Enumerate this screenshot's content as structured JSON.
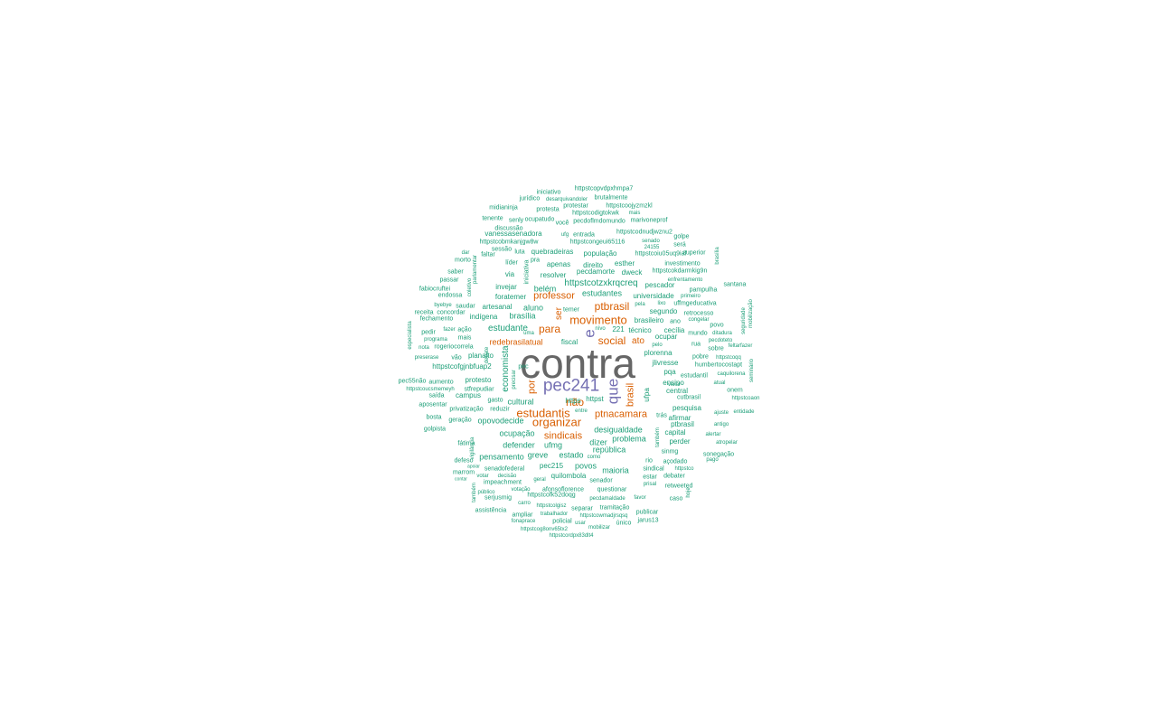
{
  "colors": {
    "gray": "#666666",
    "purple": "#7570b3",
    "orange": "#d95f02",
    "teal": "#1b9e77"
  },
  "words": [
    {
      "text": "contra",
      "color": "gray"
    },
    {
      "text": "pec241",
      "color": "purple"
    },
    {
      "text": "que",
      "color": "purple"
    },
    {
      "text": "e",
      "color": "purple"
    },
    {
      "text": "movimento",
      "color": "orange"
    },
    {
      "text": "estudantis",
      "color": "orange"
    },
    {
      "text": "organizar",
      "color": "orange"
    },
    {
      "text": "ptbrasil",
      "color": "orange"
    },
    {
      "text": "para",
      "color": "orange"
    },
    {
      "text": "social",
      "color": "orange"
    },
    {
      "text": "não",
      "color": "orange"
    },
    {
      "text": "ptnacamara",
      "color": "orange"
    },
    {
      "text": "sindicais",
      "color": "orange"
    },
    {
      "text": "professor",
      "color": "orange"
    },
    {
      "text": "redebrasilatual",
      "color": "orange"
    },
    {
      "text": "brasil",
      "color": "orange"
    },
    {
      "text": "por",
      "color": "orange"
    },
    {
      "text": "ato",
      "color": "orange"
    },
    {
      "text": "ser",
      "color": "orange"
    },
    {
      "text": "economista",
      "color": "teal"
    },
    {
      "text": "httpstcotzxkrqcreq",
      "color": "teal"
    },
    {
      "text": "estudante",
      "color": "teal"
    },
    {
      "text": "brasília",
      "color": "teal"
    },
    {
      "text": "aluno",
      "color": "teal"
    },
    {
      "text": "belém",
      "color": "teal"
    },
    {
      "text": "estudantes",
      "color": "teal"
    },
    {
      "text": "desigualdade",
      "color": "teal"
    },
    {
      "text": "república",
      "color": "teal"
    },
    {
      "text": "ocupação",
      "color": "teal"
    },
    {
      "text": "cultural",
      "color": "teal"
    },
    {
      "text": "defender",
      "color": "teal"
    },
    {
      "text": "ufmg",
      "color": "teal"
    },
    {
      "text": "dizer",
      "color": "teal"
    },
    {
      "text": "problema",
      "color": "teal"
    },
    {
      "text": "pensamento",
      "color": "teal"
    },
    {
      "text": "greve",
      "color": "teal"
    },
    {
      "text": "estado",
      "color": "teal"
    },
    {
      "text": "povos",
      "color": "teal"
    },
    {
      "text": "maioria",
      "color": "teal"
    },
    {
      "text": "pec215",
      "color": "teal"
    },
    {
      "text": "quilombola",
      "color": "teal"
    },
    {
      "text": "opovodecide",
      "color": "teal"
    },
    {
      "text": "campus",
      "color": "teal"
    },
    {
      "text": "protesto",
      "color": "teal"
    },
    {
      "text": "planalto",
      "color": "teal"
    },
    {
      "text": "httpstcofgjnbfuap2",
      "color": "teal"
    },
    {
      "text": "fiscal",
      "color": "teal"
    },
    {
      "text": "técnico",
      "color": "teal"
    },
    {
      "text": "ocupar",
      "color": "teal"
    },
    {
      "text": "segundo",
      "color": "teal"
    },
    {
      "text": "brasileiro",
      "color": "teal"
    },
    {
      "text": "universidade",
      "color": "teal"
    },
    {
      "text": "pescador",
      "color": "teal"
    },
    {
      "text": "plorenna",
      "color": "teal"
    },
    {
      "text": "jlivresse",
      "color": "teal"
    },
    {
      "text": "ensino",
      "color": "teal"
    },
    {
      "text": "central",
      "color": "teal"
    },
    {
      "text": "ufpa",
      "color": "teal"
    },
    {
      "text": "https",
      "color": "teal"
    },
    {
      "text": "httpst",
      "color": "teal"
    },
    {
      "text": "pesquisa",
      "color": "teal"
    },
    {
      "text": "afirmar",
      "color": "teal"
    },
    {
      "text": "ptbrasil",
      "color": "teal"
    },
    {
      "text": "capital",
      "color": "teal"
    },
    {
      "text": "perder",
      "color": "teal"
    },
    {
      "text": "indígena",
      "color": "teal"
    },
    {
      "text": "artesanal",
      "color": "teal"
    },
    {
      "text": "foratemer",
      "color": "teal"
    },
    {
      "text": "invejar",
      "color": "teal"
    },
    {
      "text": "via",
      "color": "teal"
    },
    {
      "text": "resolver",
      "color": "teal"
    },
    {
      "text": "pecdamorte",
      "color": "teal"
    },
    {
      "text": "dweck",
      "color": "teal"
    },
    {
      "text": "direito",
      "color": "teal"
    },
    {
      "text": "esther",
      "color": "teal"
    },
    {
      "text": "apenas",
      "color": "teal"
    },
    {
      "text": "quebradeiras",
      "color": "teal"
    },
    {
      "text": "população",
      "color": "teal"
    },
    {
      "text": "httpstcoiu05uq9iaf",
      "color": "teal"
    },
    {
      "text": "vanessasenadora",
      "color": "teal"
    },
    {
      "text": "httpstcobmkanjgw8w",
      "color": "teal"
    },
    {
      "text": "httpstcongeui65116",
      "color": "teal"
    },
    {
      "text": "httpstcodnudjwznu2",
      "color": "teal"
    },
    {
      "text": "pecdoflmdomundo",
      "color": "teal"
    },
    {
      "text": "httpstcodigtokwk",
      "color": "teal"
    },
    {
      "text": "httpstcoojyzmzkl",
      "color": "teal"
    },
    {
      "text": "brutalmente",
      "color": "teal"
    },
    {
      "text": "httpstcopvdpxhmpa7",
      "color": "teal"
    },
    {
      "text": "iniciativo",
      "color": "teal"
    },
    {
      "text": "desarquivandoler",
      "color": "teal"
    },
    {
      "text": "jurídico",
      "color": "teal"
    },
    {
      "text": "protestar",
      "color": "teal"
    },
    {
      "text": "protesta",
      "color": "teal"
    },
    {
      "text": "midianinja",
      "color": "teal"
    },
    {
      "text": "tenente",
      "color": "teal"
    },
    {
      "text": "senly",
      "color": "teal"
    },
    {
      "text": "ocupatudo",
      "color": "teal"
    },
    {
      "text": "você",
      "color": "teal"
    },
    {
      "text": "mais",
      "color": "teal"
    },
    {
      "text": "marivoneprof",
      "color": "teal"
    },
    {
      "text": "discussão",
      "color": "teal"
    },
    {
      "text": "entrada",
      "color": "teal"
    },
    {
      "text": "ufg",
      "color": "teal"
    },
    {
      "text": "golpe",
      "color": "teal"
    },
    {
      "text": "senado",
      "color": "teal"
    },
    {
      "text": "24155",
      "color": "teal"
    },
    {
      "text": "será",
      "color": "teal"
    },
    {
      "text": "superior",
      "color": "teal"
    },
    {
      "text": "investimento",
      "color": "teal"
    },
    {
      "text": "httpstcokdarmkig9n",
      "color": "teal"
    },
    {
      "text": "enfrentamento",
      "color": "teal"
    },
    {
      "text": "pampulha",
      "color": "teal"
    },
    {
      "text": "santana",
      "color": "teal"
    },
    {
      "text": "primeiro",
      "color": "teal"
    },
    {
      "text": "uffmgeducativa",
      "color": "teal"
    },
    {
      "text": "retrocesso",
      "color": "teal"
    },
    {
      "text": "congelar",
      "color": "teal"
    },
    {
      "text": "mundo",
      "color": "teal"
    },
    {
      "text": "ditadura",
      "color": "teal"
    },
    {
      "text": "pecdoteto",
      "color": "teal"
    },
    {
      "text": "cecília",
      "color": "teal"
    },
    {
      "text": "pobre",
      "color": "teal"
    },
    {
      "text": "httpstcoqq",
      "color": "teal"
    },
    {
      "text": "humbertocostapt",
      "color": "teal"
    },
    {
      "text": "estudantil",
      "color": "teal"
    },
    {
      "text": "caquilorena",
      "color": "teal"
    },
    {
      "text": "cutbrasil",
      "color": "teal"
    },
    {
      "text": "httpstcoaon",
      "color": "teal"
    },
    {
      "text": "ajuste",
      "color": "teal"
    },
    {
      "text": "entidade",
      "color": "teal"
    },
    {
      "text": "antigo",
      "color": "teal"
    },
    {
      "text": "alertar",
      "color": "teal"
    },
    {
      "text": "atropelar",
      "color": "teal"
    },
    {
      "text": "sonegação",
      "color": "teal"
    },
    {
      "text": "pago",
      "color": "teal"
    },
    {
      "text": "açodado",
      "color": "teal"
    },
    {
      "text": "sindical",
      "color": "teal"
    },
    {
      "text": "httpstco",
      "color": "teal"
    },
    {
      "text": "debater",
      "color": "teal"
    },
    {
      "text": "retweeted",
      "color": "teal"
    },
    {
      "text": "estar",
      "color": "teal"
    },
    {
      "text": "prisal",
      "color": "teal"
    },
    {
      "text": "caso",
      "color": "teal"
    },
    {
      "text": "publicar",
      "color": "teal"
    },
    {
      "text": "jarus13",
      "color": "teal"
    },
    {
      "text": "único",
      "color": "teal"
    },
    {
      "text": "favor",
      "color": "teal"
    },
    {
      "text": "pecdamaldade",
      "color": "teal"
    },
    {
      "text": "questionar",
      "color": "teal"
    },
    {
      "text": "senador",
      "color": "teal"
    },
    {
      "text": "tramitação",
      "color": "teal"
    },
    {
      "text": "separar",
      "color": "teal"
    },
    {
      "text": "httpstcowmadjrsqsq",
      "color": "teal"
    },
    {
      "text": "usar",
      "color": "teal"
    },
    {
      "text": "mobilizar",
      "color": "teal"
    },
    {
      "text": "policial",
      "color": "teal"
    },
    {
      "text": "trabalhador",
      "color": "teal"
    },
    {
      "text": "ampliar",
      "color": "teal"
    },
    {
      "text": "fonaprace",
      "color": "teal"
    },
    {
      "text": "httpstcog8onv65tx2",
      "color": "teal"
    },
    {
      "text": "httpstcordpx83dlt4",
      "color": "teal"
    },
    {
      "text": "httpstcolgisz",
      "color": "teal"
    },
    {
      "text": "carro",
      "color": "teal"
    },
    {
      "text": "assistência",
      "color": "teal"
    },
    {
      "text": "serjusmig",
      "color": "teal"
    },
    {
      "text": "httpstcofk52doqg",
      "color": "teal"
    },
    {
      "text": "afonsoflorence",
      "color": "teal"
    },
    {
      "text": "votação",
      "color": "teal"
    },
    {
      "text": "público",
      "color": "teal"
    },
    {
      "text": "impeachment",
      "color": "teal"
    },
    {
      "text": "votar",
      "color": "teal"
    },
    {
      "text": "decisão",
      "color": "teal"
    },
    {
      "text": "marrom",
      "color": "teal"
    },
    {
      "text": "contar",
      "color": "teal"
    },
    {
      "text": "senadofederal",
      "color": "teal"
    },
    {
      "text": "defeso",
      "color": "teal"
    },
    {
      "text": "apoiar",
      "color": "teal"
    },
    {
      "text": "fátima",
      "color": "teal"
    },
    {
      "text": "geração",
      "color": "teal"
    },
    {
      "text": "golpista",
      "color": "teal"
    },
    {
      "text": "bosta",
      "color": "teal"
    },
    {
      "text": "privatização",
      "color": "teal"
    },
    {
      "text": "reduzir",
      "color": "teal"
    },
    {
      "text": "gasto",
      "color": "teal"
    },
    {
      "text": "aposentar",
      "color": "teal"
    },
    {
      "text": "saída",
      "color": "teal"
    },
    {
      "text": "httpstcoucsmemeyh",
      "color": "teal"
    },
    {
      "text": "stfrepudiar",
      "color": "teal"
    },
    {
      "text": "pec55não",
      "color": "teal"
    },
    {
      "text": "aumento",
      "color": "teal"
    },
    {
      "text": "preserase",
      "color": "teal"
    },
    {
      "text": "vão",
      "color": "teal"
    },
    {
      "text": "rogeriocorrela",
      "color": "teal"
    },
    {
      "text": "nota",
      "color": "teal"
    },
    {
      "text": "programa",
      "color": "teal"
    },
    {
      "text": "mais",
      "color": "teal"
    },
    {
      "text": "pedir",
      "color": "teal"
    },
    {
      "text": "fazer",
      "color": "teal"
    },
    {
      "text": "ação",
      "color": "teal"
    },
    {
      "text": "fechamento",
      "color": "teal"
    },
    {
      "text": "receita",
      "color": "teal"
    },
    {
      "text": "concordar",
      "color": "teal"
    },
    {
      "text": "byebye",
      "color": "teal"
    },
    {
      "text": "saudar",
      "color": "teal"
    },
    {
      "text": "endossa",
      "color": "teal"
    },
    {
      "text": "fabiocruftei",
      "color": "teal"
    },
    {
      "text": "passar",
      "color": "teal"
    },
    {
      "text": "saber",
      "color": "teal"
    },
    {
      "text": "morto",
      "color": "teal"
    },
    {
      "text": "faltar",
      "color": "teal"
    },
    {
      "text": "sessão",
      "color": "teal"
    },
    {
      "text": "líder",
      "color": "teal"
    },
    {
      "text": "luta",
      "color": "teal"
    },
    {
      "text": "pra",
      "color": "teal"
    },
    {
      "text": "dar",
      "color": "teal"
    },
    {
      "text": "temer",
      "color": "teal"
    },
    {
      "text": "221",
      "color": "teal"
    },
    {
      "text": "nívo",
      "color": "teal"
    },
    {
      "text": "uma",
      "color": "teal"
    },
    {
      "text": "pela",
      "color": "teal"
    },
    {
      "text": "pelo",
      "color": "teal"
    },
    {
      "text": "ano",
      "color": "teal"
    },
    {
      "text": "lixo",
      "color": "teal"
    },
    {
      "text": "atual",
      "color": "teal"
    },
    {
      "text": "povo",
      "color": "teal"
    },
    {
      "text": "sobre",
      "color": "teal"
    },
    {
      "text": "feltarfazer",
      "color": "teal"
    },
    {
      "text": "onem",
      "color": "teal"
    },
    {
      "text": "trás",
      "color": "teal"
    },
    {
      "text": "rio",
      "color": "teal"
    },
    {
      "text": "sinmg",
      "color": "teal"
    },
    {
      "text": "entre",
      "color": "teal"
    },
    {
      "text": "como",
      "color": "teal"
    },
    {
      "text": "geral",
      "color": "teal"
    },
    {
      "text": "também",
      "color": "teal"
    },
    {
      "text": "vigilância",
      "color": "teal"
    },
    {
      "text": "iniciativa",
      "color": "teal"
    },
    {
      "text": "coletivo",
      "color": "teal"
    },
    {
      "text": "pqa",
      "color": "teal"
    },
    {
      "text": "seguridade",
      "color": "teal"
    },
    {
      "text": "mobilização",
      "color": "teal"
    },
    {
      "text": "especialista",
      "color": "teal"
    },
    {
      "text": "rua",
      "color": "teal"
    },
    {
      "text": "pec",
      "color": "teal"
    },
    {
      "text": "seminário",
      "color": "teal"
    },
    {
      "text": "brasília",
      "color": "teal"
    },
    {
      "text": "parlamentar",
      "color": "teal"
    },
    {
      "text": "violar",
      "color": "teal"
    },
    {
      "text": "hoje",
      "color": "teal"
    },
    {
      "text": "também",
      "color": "teal"
    },
    {
      "text": "precisar",
      "color": "teal"
    },
    {
      "text": "debate",
      "color": "teal"
    }
  ]
}
